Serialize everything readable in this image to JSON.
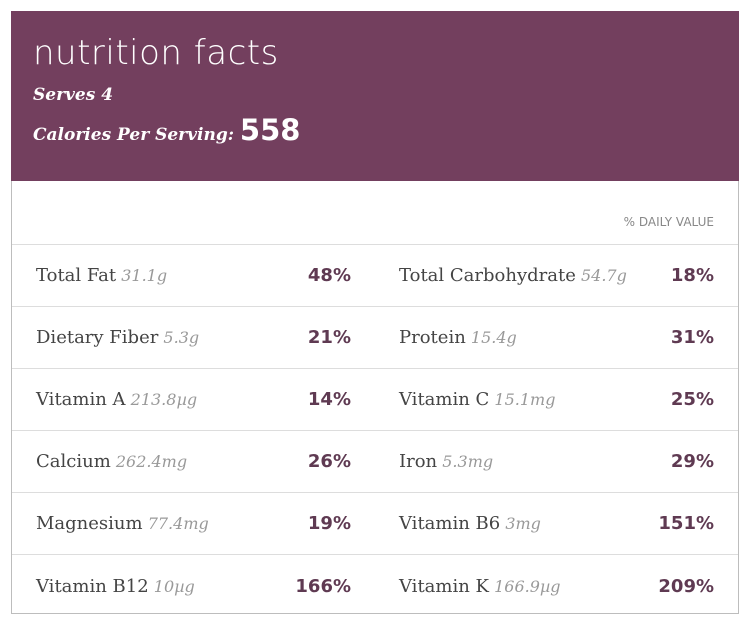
{
  "title": "nutrition facts",
  "serves": "Serves 4",
  "calories_label": "Calories Per Serving:",
  "calories": "558",
  "daily_value_label": "% DAILY VALUE",
  "rows": [
    [
      {
        "name": "Total Fat",
        "amount": "31.1g",
        "pct": "48%"
      },
      {
        "name": "Total Carbohydrate",
        "amount": "54.7g",
        "pct": "18%"
      }
    ],
    [
      {
        "name": "Dietary Fiber",
        "amount": "5.3g",
        "pct": "21%"
      },
      {
        "name": "Protein",
        "amount": "15.4g",
        "pct": "31%"
      }
    ],
    [
      {
        "name": "Vitamin A",
        "amount": "213.8µg",
        "pct": "14%"
      },
      {
        "name": "Vitamin C",
        "amount": "15.1mg",
        "pct": "25%"
      }
    ],
    [
      {
        "name": "Calcium",
        "amount": "262.4mg",
        "pct": "26%"
      },
      {
        "name": "Iron",
        "amount": "5.3mg",
        "pct": "29%"
      }
    ],
    [
      {
        "name": "Magnesium",
        "amount": "77.4mg",
        "pct": "19%"
      },
      {
        "name": "Vitamin B6",
        "amount": "3mg",
        "pct": "151%"
      }
    ],
    [
      {
        "name": "Vitamin B12",
        "amount": "10µg",
        "pct": "166%"
      },
      {
        "name": "Vitamin K",
        "amount": "166.9µg",
        "pct": "209%"
      }
    ]
  ]
}
